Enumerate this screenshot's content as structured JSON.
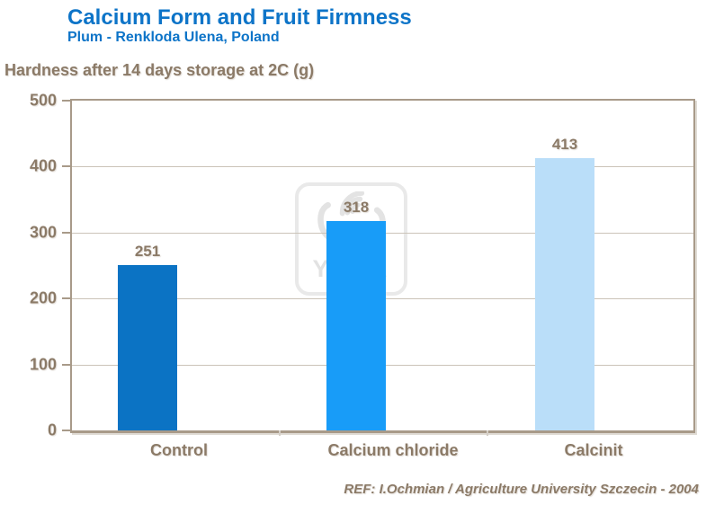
{
  "chart_data": {
    "type": "bar",
    "title": "Calcium Form and Fruit Firmness",
    "subtitle": "Plum - Renkloda Ulena, Poland",
    "axis_title": "Hardness after 14 days storage at 2C (g)",
    "categories": [
      "Control",
      "Calcium chloride",
      "Calcinit"
    ],
    "values": [
      251,
      318,
      413
    ],
    "bar_colors": [
      "#0b73c4",
      "#189cf8",
      "#badef9"
    ],
    "ylabel": "Hardness after 14 days storage at 2C (g)",
    "xlabel": "",
    "ylim": [
      0,
      500
    ],
    "yticks": [
      0,
      100,
      200,
      300,
      400,
      500
    ],
    "grid": true,
    "legend_position": "none"
  },
  "watermark": {
    "icon": "yara-viking-ship-logo",
    "text": "YARA"
  },
  "footer": {
    "reference": "REF: I.Ochmian / Agriculture University Szczecin - 2004"
  },
  "colors": {
    "title_blue": "#0d74c8",
    "axis_text_brown": "#8b7a67",
    "plot_border": "#a89a89",
    "gridline": "#cbc3b8",
    "watermark_gray": "#e5e5e5",
    "bar_control": "#0b73c4",
    "bar_calcium_chloride": "#189cf8",
    "bar_calcinit": "#badef9"
  }
}
